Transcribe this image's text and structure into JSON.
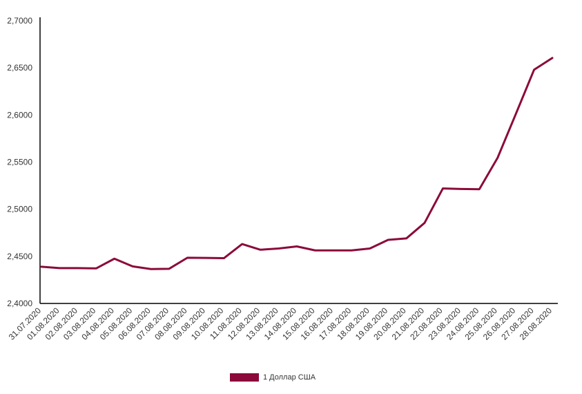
{
  "chart_data": {
    "type": "line",
    "title": "",
    "xlabel": "",
    "ylabel": "",
    "x": [
      "31.07.2020",
      "01.08.2020",
      "02.08.2020",
      "03.08.2020",
      "04.08.2020",
      "05.08.2020",
      "06.08.2020",
      "07.08.2020",
      "08.08.2020",
      "09.08.2020",
      "10.08.2020",
      "11.08.2020",
      "12.08.2020",
      "13.08.2020",
      "14.08.2020",
      "15.08.2020",
      "16.08.2020",
      "17.08.2020",
      "18.08.2020",
      "19.08.2020",
      "20.08.2020",
      "21.08.2020",
      "22.08.2020",
      "23.08.2020",
      "24.08.2020",
      "25.08.2020",
      "26.08.2020",
      "27.08.2020",
      "28.08.2020"
    ],
    "yticks": [
      "2,4000",
      "2,4500",
      "2,5000",
      "2,5500",
      "2,6000",
      "2,6500",
      "2,7000"
    ],
    "ylim": [
      2.4,
      2.7
    ],
    "grid": false,
    "legend_position": "bottom",
    "series": [
      {
        "name": "1 Доллар США",
        "color": "#8b0a3a",
        "values": [
          2.439,
          2.4375,
          2.4375,
          2.4372,
          2.4475,
          2.4393,
          2.4365,
          2.4368,
          2.4485,
          2.4483,
          2.448,
          2.463,
          2.457,
          2.4583,
          2.4605,
          2.4563,
          2.4563,
          2.4563,
          2.4583,
          2.4675,
          2.469,
          2.4855,
          2.522,
          2.5215,
          2.5212,
          2.5545,
          2.601,
          2.648,
          2.6605
        ]
      }
    ]
  }
}
